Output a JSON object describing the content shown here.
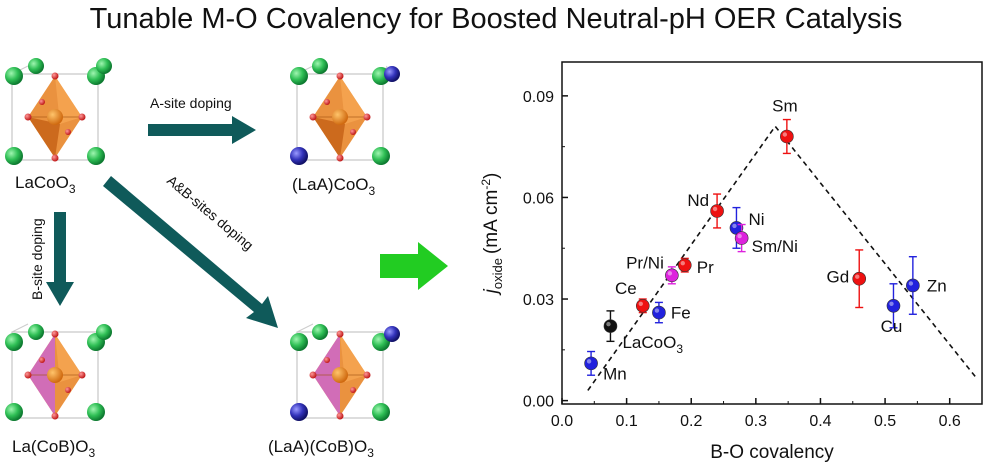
{
  "title": "Tunable M-O Covalency for Boosted Neutral-pH OER Catalysis",
  "structures": {
    "parent": {
      "label": "LaCoO",
      "sub": "3"
    },
    "a_site": {
      "label": "(LaA)CoO",
      "sub": "3"
    },
    "b_site": {
      "label": "La(CoB)O",
      "sub": "3"
    },
    "ab_site": {
      "label": "(LaA)(CoB)O",
      "sub": "3"
    }
  },
  "arrows": {
    "a_site_doping": "A-site doping",
    "b_site_doping": "B-site doping",
    "ab_sites_doping": "A&B-sites doping"
  },
  "colors": {
    "arrow_teal": "#0f5a5a",
    "result_arrow": "#22cc22",
    "la_sphere": "#33cc55",
    "dopant_sphere": "#3333bb",
    "octahedron": "#e8862a",
    "doped_octahedron": "#cc66cc",
    "oxygen": "#e03030"
  },
  "chart_data": {
    "type": "scatter",
    "xlabel": "B-O covalency",
    "ylabel_main": "j",
    "ylabel_sub": "oxide",
    "ylabel_unit": "(mA cm",
    "ylabel_sup": "-2",
    "ylabel_close": ")",
    "xlim": [
      0.0,
      0.65
    ],
    "ylim": [
      -0.001,
      0.1
    ],
    "xticks": [
      0.0,
      0.1,
      0.2,
      0.3,
      0.4,
      0.5,
      0.6
    ],
    "xtick_labels": [
      "0.0",
      "0.1",
      "0.2",
      "0.3",
      "0.4",
      "0.5",
      "0.6"
    ],
    "yticks": [
      0.0,
      0.03,
      0.06,
      0.09
    ],
    "ytick_labels": [
      "0.00",
      "0.03",
      "0.06",
      "0.09"
    ],
    "points": [
      {
        "label": "Mn",
        "x": 0.045,
        "y": 0.011,
        "err": 0.0035,
        "color": "#2222dd"
      },
      {
        "label": "LaCoO",
        "label_sub": "3",
        "x": 0.075,
        "y": 0.022,
        "err": 0.0045,
        "color": "#111111"
      },
      {
        "label": "Ce",
        "x": 0.125,
        "y": 0.028,
        "err": 0.002,
        "color": "#ee1111"
      },
      {
        "label": "Fe",
        "x": 0.15,
        "y": 0.026,
        "err": 0.003,
        "color": "#2222dd"
      },
      {
        "label": "Pr/Ni",
        "x": 0.17,
        "y": 0.037,
        "err": 0.0025,
        "color": "#dd22dd"
      },
      {
        "label": "Pr",
        "x": 0.19,
        "y": 0.04,
        "err": 0.002,
        "color": "#ee1111"
      },
      {
        "label": "Nd",
        "x": 0.24,
        "y": 0.056,
        "err": 0.005,
        "color": "#ee1111"
      },
      {
        "label": "Ni",
        "x": 0.27,
        "y": 0.051,
        "err": 0.006,
        "color": "#2222dd"
      },
      {
        "label": "Sm/Ni",
        "x": 0.278,
        "y": 0.048,
        "err": 0.004,
        "color": "#dd22dd"
      },
      {
        "label": "Sm",
        "x": 0.348,
        "y": 0.078,
        "err": 0.005,
        "color": "#ee1111"
      },
      {
        "label": "Gd",
        "x": 0.46,
        "y": 0.036,
        "err": 0.0085,
        "color": "#ee1111"
      },
      {
        "label": "Cu",
        "x": 0.513,
        "y": 0.028,
        "err": 0.0065,
        "color": "#2222dd"
      },
      {
        "label": "Zn",
        "x": 0.543,
        "y": 0.034,
        "err": 0.0085,
        "color": "#2222dd"
      }
    ],
    "volcano": [
      [
        0.04,
        0.003
      ],
      [
        0.33,
        0.081
      ],
      [
        0.64,
        0.007
      ]
    ],
    "grid": false,
    "legend": "none"
  }
}
